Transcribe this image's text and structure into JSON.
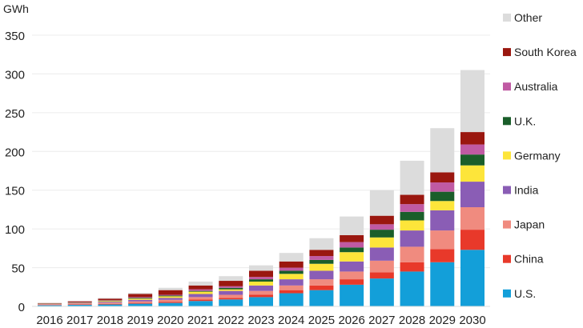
{
  "chart_data": {
    "type": "bar",
    "stacked": true,
    "title": "",
    "xlabel": "",
    "ylabel": "GWh",
    "ylim": [
      0,
      350
    ],
    "yticks": [
      0,
      50,
      100,
      150,
      200,
      250,
      300,
      350
    ],
    "grid": true,
    "legend_position": "right",
    "categories": [
      "2016",
      "2017",
      "2018",
      "2019",
      "2020",
      "2021",
      "2022",
      "2023",
      "2024",
      "2025",
      "2026",
      "2027",
      "2028",
      "2029",
      "2030"
    ],
    "series": [
      {
        "name": "U.S.",
        "color": "#139fd9",
        "values": [
          1.5,
          2,
          2.5,
          3.5,
          4.5,
          7,
          9,
          12,
          17,
          21,
          28,
          36,
          45,
          57,
          73
        ]
      },
      {
        "name": "China",
        "color": "#e8392a",
        "values": [
          0.3,
          0.5,
          0.8,
          1,
          1.5,
          2,
          2,
          3,
          4,
          6,
          7,
          8,
          12,
          17,
          26
        ]
      },
      {
        "name": "Japan",
        "color": "#f08b7f",
        "values": [
          1.2,
          1.5,
          1.5,
          2,
          2.5,
          3,
          4,
          5,
          6,
          8,
          10,
          15,
          20,
          24,
          29
        ]
      },
      {
        "name": "India",
        "color": "#8a5db5",
        "values": [
          0.2,
          0.5,
          1.2,
          2,
          2.5,
          4,
          5,
          7,
          8,
          11,
          13,
          17,
          21,
          26,
          33
        ]
      },
      {
        "name": "Germany",
        "color": "#fde53a",
        "values": [
          0.2,
          0.3,
          1,
          1.5,
          2,
          3,
          2,
          5,
          7,
          9,
          12,
          13,
          13,
          12,
          21
        ]
      },
      {
        "name": "U.K.",
        "color": "#1a5e2a",
        "values": [
          0.2,
          0.3,
          0.5,
          1,
          1,
          1,
          2,
          3,
          4,
          5,
          6,
          10,
          11,
          12,
          14
        ]
      },
      {
        "name": "Australia",
        "color": "#c05aa3",
        "values": [
          0.2,
          0.3,
          0.5,
          1,
          1,
          2,
          2,
          3,
          4,
          5,
          7,
          7,
          10,
          12,
          13
        ]
      },
      {
        "name": "South Korea",
        "color": "#9a170f",
        "values": [
          0.5,
          1.2,
          2,
          4,
          6,
          5,
          7,
          8,
          8,
          8,
          9,
          11,
          12,
          13,
          16
        ]
      },
      {
        "name": "Other",
        "color": "#dcdcdc",
        "values": [
          0.2,
          0.4,
          1,
          1.5,
          3,
          5,
          6,
          7,
          11,
          15,
          24,
          33,
          44,
          57,
          80
        ]
      }
    ]
  }
}
